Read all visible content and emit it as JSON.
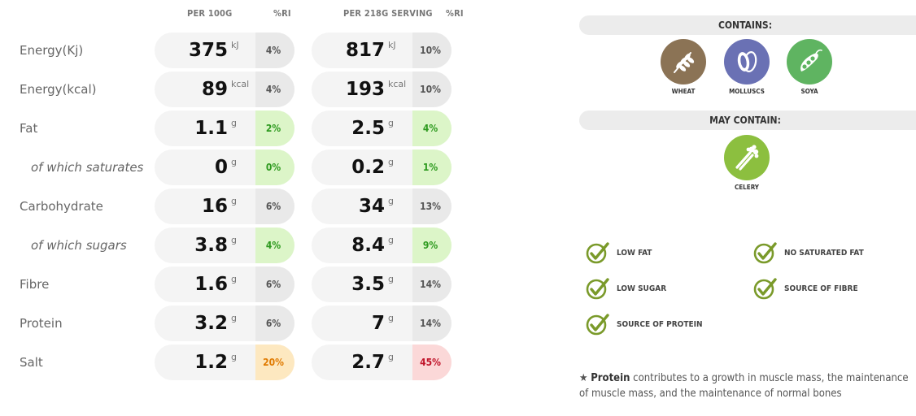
{
  "headers": {
    "per100": "PER 100G",
    "ri1": "%RI",
    "perServing": "PER 218G SERVING",
    "ri2": "%RI"
  },
  "rows": [
    {
      "label": "Energy(Kj)",
      "sub": false,
      "v100": "375",
      "u100": "kJ",
      "ri100": "4%",
      "c100": "grey",
      "vs": "817",
      "us": "kJ",
      "ris": "10%",
      "cs": "grey"
    },
    {
      "label": "Energy(kcal)",
      "sub": false,
      "v100": "89",
      "u100": "kcal",
      "ri100": "4%",
      "c100": "grey",
      "vs": "193",
      "us": "kcal",
      "ris": "10%",
      "cs": "grey"
    },
    {
      "label": "Fat",
      "sub": false,
      "v100": "1.1",
      "u100": "g",
      "ri100": "2%",
      "c100": "green",
      "vs": "2.5",
      "us": "g",
      "ris": "4%",
      "cs": "green"
    },
    {
      "label": "of which saturates",
      "sub": true,
      "v100": "0",
      "u100": "g",
      "ri100": "0%",
      "c100": "green",
      "vs": "0.2",
      "us": "g",
      "ris": "1%",
      "cs": "green"
    },
    {
      "label": "Carbohydrate",
      "sub": false,
      "v100": "16",
      "u100": "g",
      "ri100": "6%",
      "c100": "grey",
      "vs": "34",
      "us": "g",
      "ris": "13%",
      "cs": "grey"
    },
    {
      "label": "of which sugars",
      "sub": true,
      "v100": "3.8",
      "u100": "g",
      "ri100": "4%",
      "c100": "green",
      "vs": "8.4",
      "us": "g",
      "ris": "9%",
      "cs": "green"
    },
    {
      "label": "Fibre",
      "sub": false,
      "v100": "1.6",
      "u100": "g",
      "ri100": "6%",
      "c100": "grey",
      "vs": "3.5",
      "us": "g",
      "ris": "14%",
      "cs": "grey"
    },
    {
      "label": "Protein",
      "sub": false,
      "v100": "3.2",
      "u100": "g",
      "ri100": "6%",
      "c100": "grey",
      "vs": "7",
      "us": "g",
      "ris": "14%",
      "cs": "grey"
    },
    {
      "label": "Salt",
      "sub": false,
      "v100": "1.2",
      "u100": "g",
      "ri100": "20%",
      "c100": "amber",
      "vs": "2.7",
      "us": "g",
      "ris": "45%",
      "cs": "red"
    }
  ],
  "contains": {
    "title": "CONTAINS:",
    "items": [
      {
        "name": "WHEAT",
        "icon": "wheat-icon",
        "color": "#8b7355"
      },
      {
        "name": "MOLLUSCS",
        "icon": "mollusc-icon",
        "color": "#6a71b4"
      },
      {
        "name": "SOYA",
        "icon": "soya-icon",
        "color": "#5fb461"
      }
    ]
  },
  "mayContain": {
    "title": "MAY CONTAIN:",
    "items": [
      {
        "name": "CELERY",
        "icon": "celery-icon",
        "color": "#8cbf3f"
      }
    ]
  },
  "claims": [
    "LOW FAT",
    "NO SATURATED FAT",
    "LOW SUGAR",
    "SOURCE OF FIBRE",
    "SOURCE OF PROTEIN"
  ],
  "note": {
    "star": "★",
    "bold": "Protein",
    "text": " contributes to a growth in muscle mass, the maintenance of muscle mass, and the maintenance of normal bones"
  },
  "colors": {
    "check": "#7a9a2a"
  }
}
